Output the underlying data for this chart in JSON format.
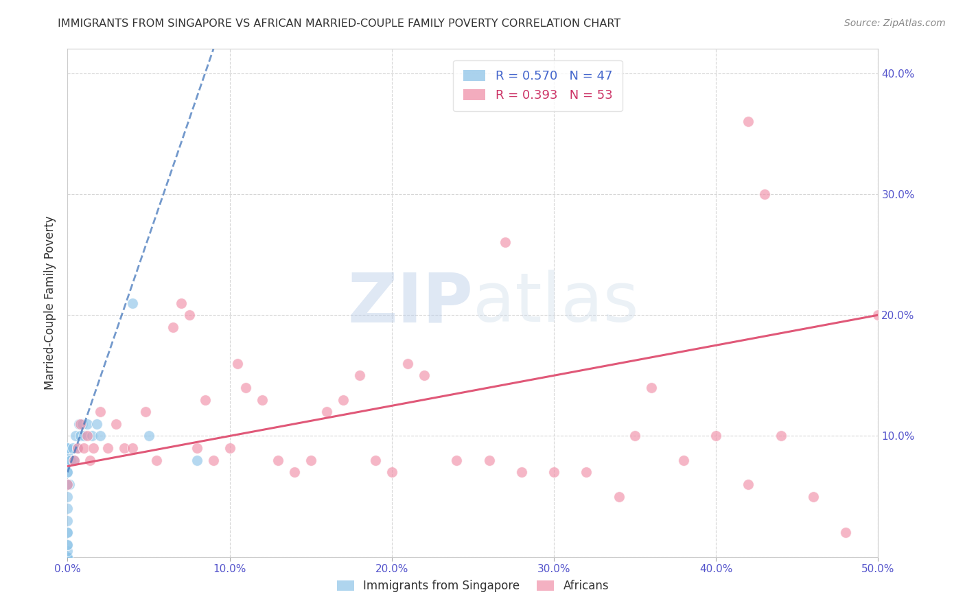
{
  "title": "IMMIGRANTS FROM SINGAPORE VS AFRICAN MARRIED-COUPLE FAMILY POVERTY CORRELATION CHART",
  "source": "Source: ZipAtlas.com",
  "ylabel": "Married-Couple Family Poverty",
  "xlim": [
    0.0,
    0.5
  ],
  "ylim": [
    0.0,
    0.42
  ],
  "xticks": [
    0.0,
    0.1,
    0.2,
    0.3,
    0.4,
    0.5
  ],
  "yticks": [
    0.0,
    0.1,
    0.2,
    0.3,
    0.4
  ],
  "xtick_labels": [
    "0.0%",
    "10.0%",
    "20.0%",
    "30.0%",
    "40.0%",
    "50.0%"
  ],
  "ytick_labels_right": [
    "",
    "10.0%",
    "20.0%",
    "30.0%",
    "40.0%"
  ],
  "singapore_color": "#8ec4e8",
  "african_color": "#f090a8",
  "singapore_trendline_color": "#4477bb",
  "african_trendline_color": "#e05878",
  "watermark_zip": "ZIP",
  "watermark_atlas": "atlas",
  "singapore_R": 0.57,
  "singapore_N": 47,
  "african_R": 0.393,
  "african_N": 53,
  "singapore_points_x": [
    0.0,
    0.0,
    0.0,
    0.0,
    0.0,
    0.0,
    0.0,
    0.0,
    0.0,
    0.0,
    0.0,
    0.0,
    0.0,
    0.0,
    0.0,
    0.0,
    0.0,
    0.0,
    0.0,
    0.0,
    0.0,
    0.0,
    0.0,
    0.0,
    0.0,
    0.0,
    0.0,
    0.0,
    0.0,
    0.0,
    0.001,
    0.002,
    0.003,
    0.004,
    0.005,
    0.006,
    0.007,
    0.008,
    0.009,
    0.01,
    0.012,
    0.015,
    0.018,
    0.02,
    0.04,
    0.05,
    0.08
  ],
  "singapore_points_y": [
    0.0,
    0.0,
    0.0,
    0.0,
    0.0,
    0.0,
    0.0,
    0.0,
    0.0,
    0.0,
    0.005,
    0.01,
    0.01,
    0.02,
    0.02,
    0.03,
    0.04,
    0.05,
    0.06,
    0.07,
    0.07,
    0.08,
    0.08,
    0.085,
    0.09,
    0.09,
    0.09,
    0.09,
    0.09,
    0.09,
    0.06,
    0.08,
    0.09,
    0.08,
    0.1,
    0.09,
    0.11,
    0.1,
    0.11,
    0.1,
    0.11,
    0.1,
    0.11,
    0.1,
    0.21,
    0.1,
    0.08
  ],
  "african_points_x": [
    0.0,
    0.004,
    0.006,
    0.008,
    0.01,
    0.012,
    0.014,
    0.016,
    0.02,
    0.025,
    0.03,
    0.035,
    0.04,
    0.048,
    0.055,
    0.065,
    0.07,
    0.075,
    0.08,
    0.085,
    0.09,
    0.1,
    0.105,
    0.11,
    0.12,
    0.13,
    0.14,
    0.15,
    0.16,
    0.17,
    0.18,
    0.19,
    0.2,
    0.21,
    0.22,
    0.24,
    0.26,
    0.28,
    0.3,
    0.32,
    0.34,
    0.36,
    0.38,
    0.4,
    0.42,
    0.44,
    0.46,
    0.48,
    0.5,
    0.27,
    0.35,
    0.42,
    0.43
  ],
  "african_points_y": [
    0.06,
    0.08,
    0.09,
    0.11,
    0.09,
    0.1,
    0.08,
    0.09,
    0.12,
    0.09,
    0.11,
    0.09,
    0.09,
    0.12,
    0.08,
    0.19,
    0.21,
    0.2,
    0.09,
    0.13,
    0.08,
    0.09,
    0.16,
    0.14,
    0.13,
    0.08,
    0.07,
    0.08,
    0.12,
    0.13,
    0.15,
    0.08,
    0.07,
    0.16,
    0.15,
    0.08,
    0.08,
    0.07,
    0.07,
    0.07,
    0.05,
    0.14,
    0.08,
    0.1,
    0.06,
    0.1,
    0.05,
    0.02,
    0.2,
    0.26,
    0.1,
    0.36,
    0.3
  ],
  "singapore_trend_x": [
    0.0,
    0.09
  ],
  "singapore_trend_y": [
    0.07,
    0.42
  ],
  "african_trend_x": [
    0.0,
    0.5
  ],
  "african_trend_y": [
    0.075,
    0.2
  ],
  "background_color": "#ffffff",
  "grid_color": "#cccccc",
  "tick_color": "#5555cc",
  "title_color": "#333333",
  "source_color": "#888888",
  "legend_text_colors": [
    "#4466cc",
    "#cc3366"
  ],
  "legend_labels": [
    "R = 0.570   N = 47",
    "R = 0.393   N = 53"
  ],
  "bottom_legend_labels": [
    "Immigrants from Singapore",
    "Africans"
  ]
}
